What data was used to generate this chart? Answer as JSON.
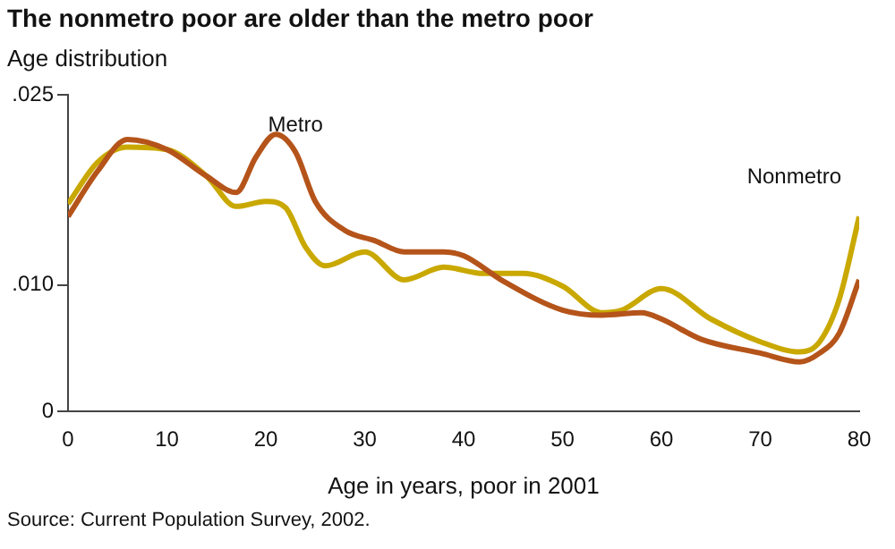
{
  "chart_data": {
    "type": "line",
    "title": "The nonmetro poor are older than the metro poor",
    "ylabel": "Age distribution",
    "xlabel": "Age in years, poor in 2001",
    "annotations": [
      "Source: Current Population Survey, 2002."
    ],
    "series": [
      {
        "name": "Metro",
        "color": "#b5541a",
        "x": [
          0,
          3,
          6,
          10,
          14,
          17,
          19,
          21,
          23,
          25,
          28,
          31,
          34,
          38,
          40,
          44,
          50,
          54,
          58,
          60,
          64,
          70,
          74,
          76,
          78,
          80
        ],
        "values": [
          0.0154,
          0.019,
          0.0215,
          0.0207,
          0.0186,
          0.0173,
          0.0201,
          0.0219,
          0.0205,
          0.0166,
          0.0143,
          0.0135,
          0.0126,
          0.0126,
          0.0123,
          0.0103,
          0.008,
          0.0076,
          0.0078,
          0.0073,
          0.0057,
          0.0046,
          0.0039,
          0.0046,
          0.0062,
          0.0104
        ]
      },
      {
        "name": "Nonmetro",
        "color": "#c9a800",
        "x": [
          0,
          3,
          6,
          10,
          14,
          17,
          20,
          22,
          24,
          26,
          30,
          34,
          38,
          42,
          46,
          50,
          54,
          56,
          60,
          65,
          70,
          74,
          76,
          78,
          80
        ],
        "values": [
          0.0164,
          0.0197,
          0.0209,
          0.0207,
          0.0186,
          0.0162,
          0.0166,
          0.0161,
          0.013,
          0.0115,
          0.0126,
          0.0104,
          0.0114,
          0.0109,
          0.0109,
          0.0099,
          0.0078,
          0.008,
          0.0097,
          0.0073,
          0.0055,
          0.0047,
          0.0055,
          0.0089,
          0.0154
        ]
      }
    ],
    "xlim": [
      0,
      80
    ],
    "xticks": [
      0,
      10,
      20,
      30,
      40,
      50,
      60,
      70,
      80
    ],
    "ylim": [
      0,
      0.025
    ],
    "yticks": [
      {
        "value": 0,
        "label": "0"
      },
      {
        "value": 0.01,
        "label": ".010"
      },
      {
        "value": 0.025,
        "label": ".025"
      }
    ],
    "grid": false,
    "legend": false,
    "marker": "none",
    "line_style": "solid"
  }
}
